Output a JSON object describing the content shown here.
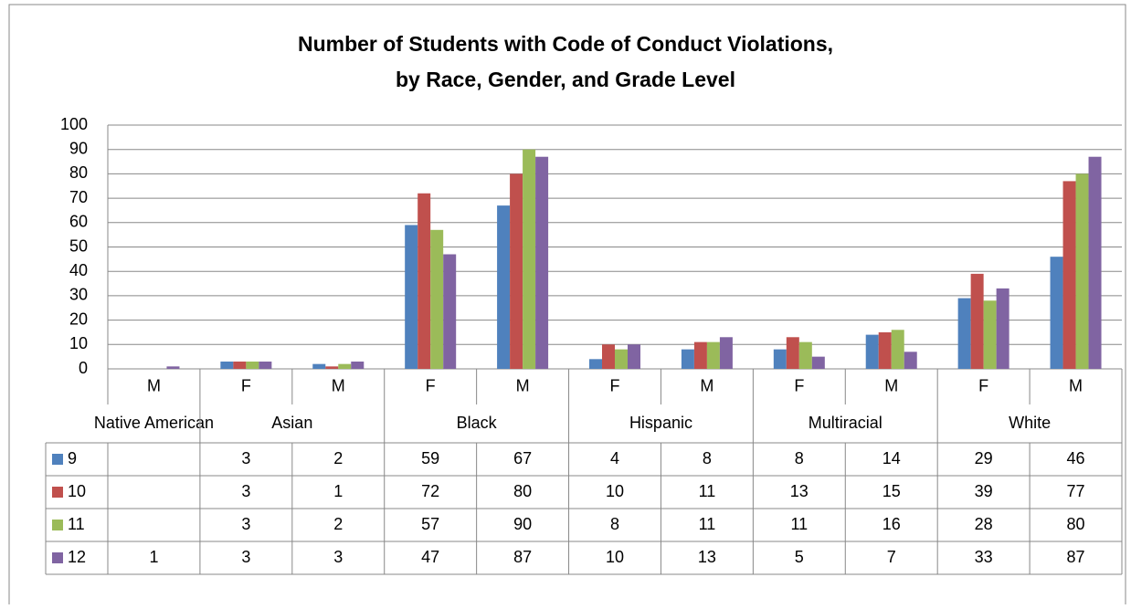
{
  "chart_data": {
    "type": "bar",
    "title": [
      "Number of Students with Code of Conduct Violations,",
      "by Race, Gender, and Grade Level"
    ],
    "categories": [
      "M",
      "F",
      "M",
      "F",
      "M",
      "F",
      "M",
      "F",
      "M",
      "F",
      "M"
    ],
    "groups": [
      {
        "name": "Native American",
        "span": 1
      },
      {
        "name": "Asian",
        "span": 2
      },
      {
        "name": "Black",
        "span": 2
      },
      {
        "name": "Hispanic",
        "span": 2
      },
      {
        "name": "Multiracial",
        "span": 2
      },
      {
        "name": "White",
        "span": 2
      }
    ],
    "series": [
      {
        "name": "9",
        "color": "#4f81bd",
        "values": [
          null,
          3,
          2,
          59,
          67,
          4,
          8,
          8,
          14,
          29,
          46
        ]
      },
      {
        "name": "10",
        "color": "#c0504d",
        "values": [
          null,
          3,
          1,
          72,
          80,
          10,
          11,
          13,
          15,
          39,
          77
        ]
      },
      {
        "name": "11",
        "color": "#9bbb59",
        "values": [
          null,
          3,
          2,
          57,
          90,
          8,
          11,
          11,
          16,
          28,
          80
        ]
      },
      {
        "name": "12",
        "color": "#8064a2",
        "values": [
          1,
          3,
          3,
          47,
          87,
          10,
          13,
          5,
          7,
          33,
          87
        ]
      }
    ],
    "ylim": [
      0,
      100
    ],
    "yticks": [
      0,
      10,
      20,
      30,
      40,
      50,
      60,
      70,
      80,
      90,
      100
    ],
    "grid": true
  }
}
